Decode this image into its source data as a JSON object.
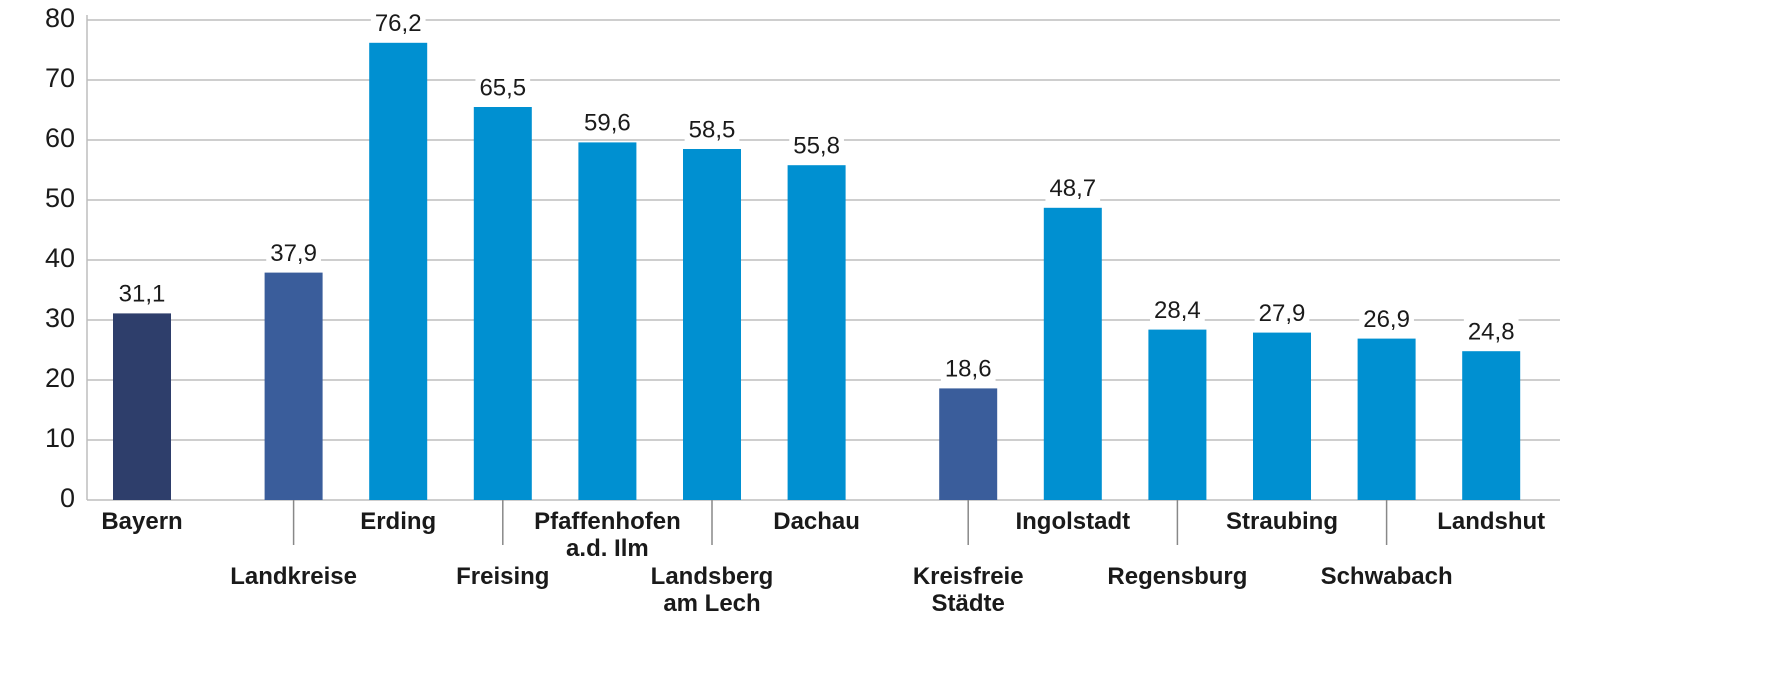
{
  "chart_data": {
    "type": "bar",
    "categories": [
      "Bayern",
      "Landkreise",
      "Erding",
      "Freising",
      "Pfaffenhofen\na.d. Ilm",
      "Landsberg\nam Lech",
      "Dachau",
      "Kreisfreie\nStädte",
      "Ingolstadt",
      "Regensburg",
      "Straubing",
      "Schwabach",
      "Landshut"
    ],
    "values": [
      31.1,
      37.9,
      76.2,
      65.5,
      59.6,
      58.5,
      55.8,
      18.6,
      48.7,
      28.4,
      27.9,
      26.9,
      24.8
    ],
    "value_labels": [
      "31,1",
      "37,9",
      "76,2",
      "65,5",
      "59,6",
      "58,5",
      "55,8",
      "18,6",
      "48,7",
      "28,4",
      "27,9",
      "26,9",
      "24,8"
    ],
    "colors": [
      "#2e3e6b",
      "#3a5d9b",
      "#0090d1",
      "#0090d1",
      "#0090d1",
      "#0090d1",
      "#0090d1",
      "#3a5d9b",
      "#0090d1",
      "#0090d1",
      "#0090d1",
      "#0090d1",
      "#0090d1"
    ],
    "ylim": [
      0,
      80
    ],
    "yticks": [
      0,
      10,
      20,
      30,
      40,
      50,
      60,
      70,
      80
    ],
    "grid": true
  }
}
